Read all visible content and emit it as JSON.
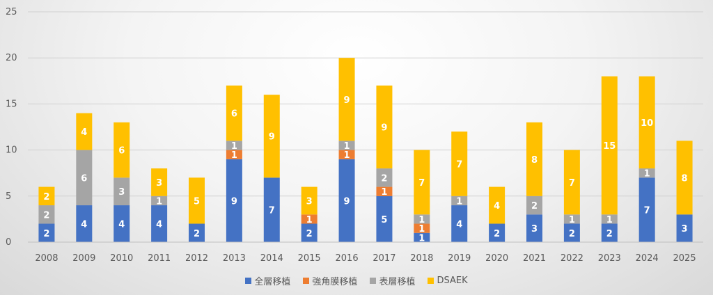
{
  "chart_data": {
    "type": "bar",
    "stacked": true,
    "categories": [
      "2008",
      "2009",
      "2010",
      "2011",
      "2012",
      "2013",
      "2014",
      "2015",
      "2016",
      "2017",
      "2018",
      "2019",
      "2020",
      "2021",
      "2022",
      "2023",
      "2024",
      "2025"
    ],
    "series": [
      {
        "name": "全層移植",
        "color": "#4472C4",
        "values": [
          2,
          4,
          4,
          4,
          2,
          9,
          7,
          2,
          9,
          5,
          1,
          4,
          2,
          3,
          2,
          2,
          7,
          3
        ]
      },
      {
        "name": "強角膜移植",
        "color": "#ED7D31",
        "values": [
          0,
          0,
          0,
          0,
          0,
          1,
          0,
          1,
          1,
          1,
          1,
          0,
          0,
          0,
          0,
          0,
          0,
          0
        ]
      },
      {
        "name": "表層移植",
        "color": "#A5A5A5",
        "values": [
          2,
          6,
          3,
          1,
          0,
          1,
          0,
          0,
          1,
          2,
          1,
          1,
          0,
          2,
          1,
          1,
          1,
          0
        ]
      },
      {
        "name": "DSAEK",
        "color": "#FFC000",
        "values": [
          2,
          4,
          6,
          3,
          5,
          6,
          9,
          3,
          9,
          9,
          7,
          7,
          4,
          8,
          7,
          15,
          10,
          8
        ]
      }
    ],
    "ylim": [
      0,
      25
    ],
    "yticks": [
      0,
      5,
      10,
      15,
      20,
      25
    ],
    "grid": true,
    "legend_position": "bottom"
  }
}
